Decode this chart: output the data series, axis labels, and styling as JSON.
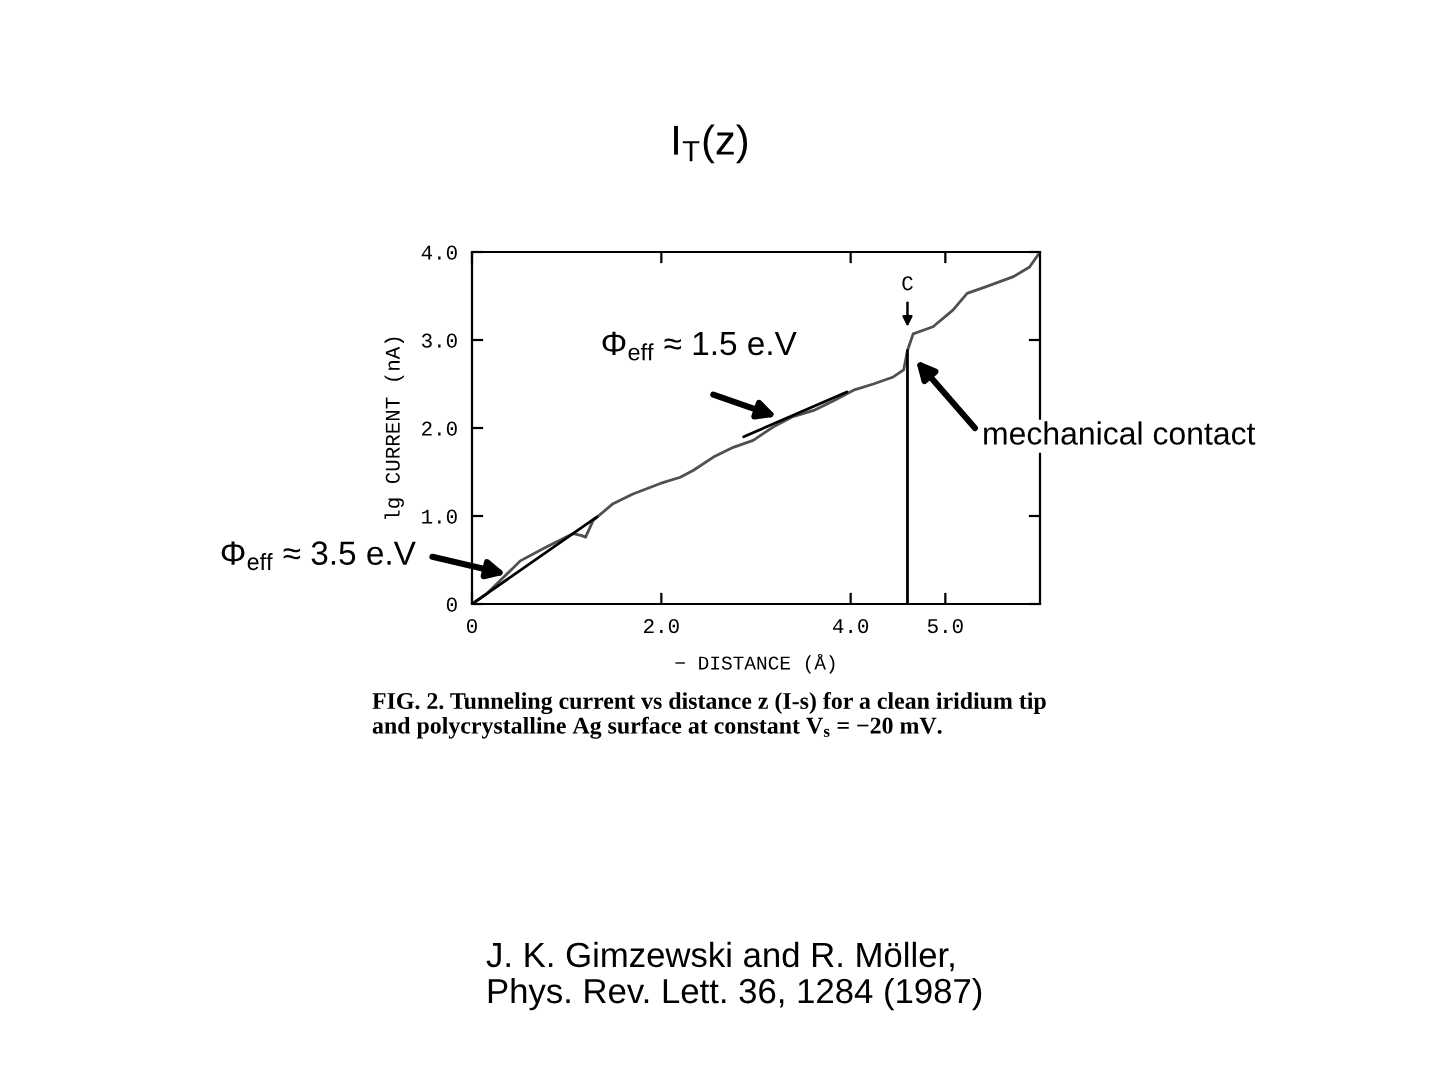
{
  "chart_data": {
    "type": "line",
    "title": "I$_{T}$(z)",
    "xlabel": "− DISTANCE (Å)",
    "ylabel": "lg CURRENT (nA)",
    "xlim": [
      0,
      6
    ],
    "xticks": [
      {
        "value": 0,
        "label": "0"
      },
      {
        "value": 2,
        "label": "2.0"
      },
      {
        "value": 4,
        "label": "4.0"
      },
      {
        "value": 5,
        "label": "5.0"
      }
    ],
    "ylim": [
      0,
      4
    ],
    "yticks": [
      {
        "value": 0,
        "label": "0"
      },
      {
        "value": 1,
        "label": "1.0"
      },
      {
        "value": 2,
        "label": "2.0"
      },
      {
        "value": 3,
        "label": "3.0"
      },
      {
        "value": 4,
        "label": "4.0"
      }
    ],
    "series": [
      {
        "color": "#505050",
        "x": [
          0,
          0.15,
          0.33,
          0.51,
          0.79,
          1.07,
          1.15,
          1.2,
          1.28,
          1.49,
          1.7,
          1.99,
          2.2,
          2.34,
          2.55,
          2.76,
          2.97,
          3.18,
          3.39,
          3.61,
          3.82,
          4.03,
          4.24,
          4.45,
          4.56,
          4.6,
          4.66,
          4.87,
          5.08,
          5.23,
          5.44,
          5.72,
          5.89,
          6.0
        ],
        "values": [
          0,
          0.11,
          0.3,
          0.49,
          0.65,
          0.8,
          0.78,
          0.76,
          0.95,
          1.14,
          1.25,
          1.37,
          1.44,
          1.52,
          1.67,
          1.78,
          1.86,
          2.01,
          2.13,
          2.2,
          2.31,
          2.43,
          2.5,
          2.58,
          2.66,
          2.88,
          3.07,
          3.15,
          3.34,
          3.53,
          3.61,
          3.72,
          3.83,
          4.0
        ]
      },
      {
        "color": "#000000",
        "x": [
          0,
          1.32
        ],
        "values": [
          0,
          0.99
        ]
      },
      {
        "color": "#000000",
        "x": [
          2.87,
          3.96
        ],
        "values": [
          1.9,
          2.41
        ]
      },
      {
        "color": "#000000",
        "x": [
          4.6,
          4.6
        ],
        "values": [
          0,
          2.88
        ]
      }
    ],
    "annotations": [
      {
        "text": "Φ$_{eff}$ ≈ 1.5 e.V",
        "x": 3.22,
        "y": 2.13
      },
      {
        "text": "mechanical contact",
        "x": 4.69,
        "y": 2.77
      },
      {
        "text": "Φ$_{eff}$ ≈ 3.5 e.V",
        "x": 0.36,
        "y": 0.34
      },
      {
        "text": "C",
        "x": 4.6,
        "y": 3.15
      },
      "FIG. 2. Tunneling current vs distance z (I-s) for a clean iridium tip and polycrystalline Ag surface at constant V$_{s}$ = −20 mV.",
      "J. K. Gimzewski and R. Möller,\nPhys. Rev. Lett. 36, 1284 (1987)"
    ]
  }
}
